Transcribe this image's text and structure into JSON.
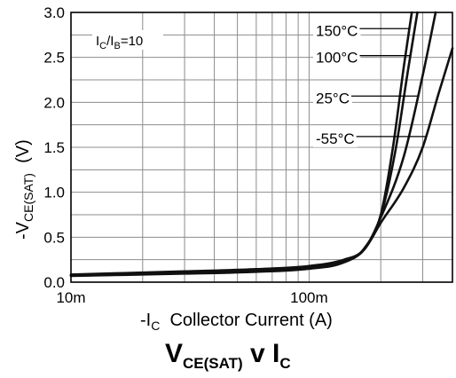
{
  "chart_data": {
    "type": "line",
    "title": "V_CE(SAT) v I_C",
    "title_parts": {
      "main": "V",
      "main_sub": "CE(SAT)",
      "mid": " v I",
      "mid_sub": "C"
    },
    "xlabel": "-I_C Collector Current (A)",
    "xlabel_parts": {
      "pre": "-I",
      "sub": "C",
      "post": "  Collector Current (A)"
    },
    "ylabel": "-V_CE(SAT) (V)",
    "ylabel_parts": {
      "pre": "-V",
      "sub": "CE(SAT)",
      "post": "  (V)"
    },
    "x_scale": "log",
    "xlim": [
      0.01,
      0.4
    ],
    "ylim": [
      0,
      3.0
    ],
    "x_ticks": [
      {
        "value": 0.01,
        "label": "10m"
      },
      {
        "value": 0.1,
        "label": "100m"
      }
    ],
    "y_ticks": [
      {
        "value": 0.0,
        "label": "0.0"
      },
      {
        "value": 0.5,
        "label": "0.5"
      },
      {
        "value": 1.0,
        "label": "1.0"
      },
      {
        "value": 1.5,
        "label": "1.5"
      },
      {
        "value": 2.0,
        "label": "2.0"
      },
      {
        "value": 2.5,
        "label": "2.5"
      },
      {
        "value": 3.0,
        "label": "3.0"
      }
    ],
    "grid": true,
    "annotation": {
      "pre": "I",
      "sub1": "C",
      "mid": "/I",
      "sub2": "B",
      "post": "=10"
    },
    "series": [
      {
        "name": "150°C",
        "label_y": 2.8,
        "x": [
          0.01,
          0.03,
          0.06,
          0.1,
          0.14,
          0.17,
          0.2,
          0.225,
          0.25,
          0.27
        ],
        "y": [
          0.07,
          0.095,
          0.115,
          0.15,
          0.22,
          0.37,
          0.75,
          1.5,
          2.4,
          3.0
        ]
      },
      {
        "name": "100°C",
        "label_y": 2.5,
        "x": [
          0.01,
          0.03,
          0.06,
          0.1,
          0.14,
          0.17,
          0.2,
          0.23,
          0.26,
          0.285
        ],
        "y": [
          0.072,
          0.1,
          0.12,
          0.155,
          0.225,
          0.37,
          0.74,
          1.45,
          2.35,
          3.0
        ]
      },
      {
        "name": "25°C",
        "label_y": 2.05,
        "x": [
          0.01,
          0.03,
          0.06,
          0.1,
          0.14,
          0.17,
          0.2,
          0.25,
          0.3,
          0.34
        ],
        "y": [
          0.08,
          0.11,
          0.13,
          0.165,
          0.235,
          0.36,
          0.72,
          1.4,
          2.3,
          3.0
        ]
      },
      {
        "name": "-55°C",
        "label_y": 1.6,
        "x": [
          0.01,
          0.03,
          0.06,
          0.1,
          0.14,
          0.17,
          0.2,
          0.25,
          0.3,
          0.35,
          0.4
        ],
        "y": [
          0.085,
          0.12,
          0.145,
          0.18,
          0.25,
          0.36,
          0.66,
          1.05,
          1.5,
          2.1,
          2.6
        ]
      }
    ]
  }
}
